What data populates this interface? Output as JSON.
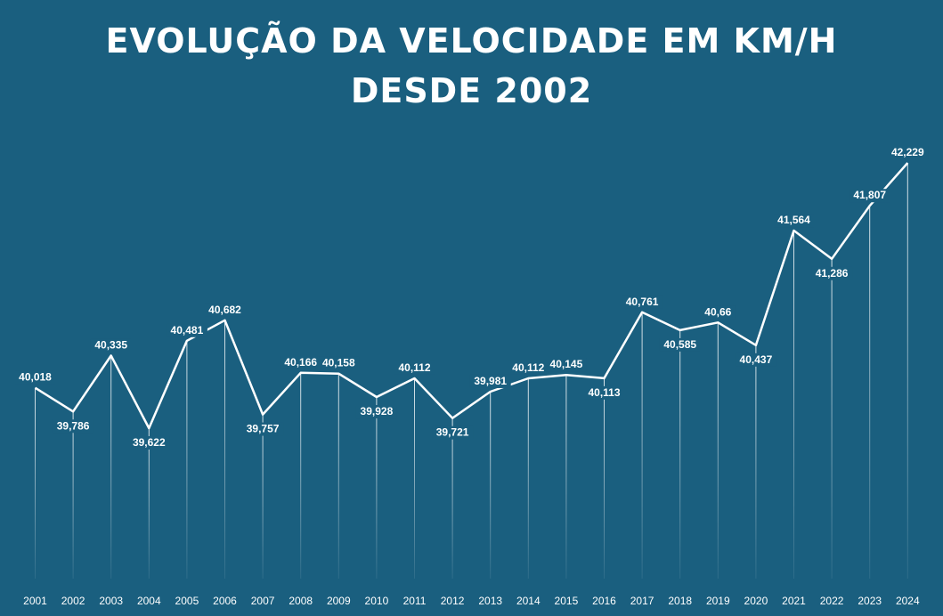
{
  "chart_data": {
    "type": "line",
    "title_line1": "EVOLUÇÃO DA VELOCIDADE EM KM/H",
    "title_line2": "DESDE 2002",
    "x": [
      "2001",
      "2002",
      "2003",
      "2004",
      "2005",
      "2006",
      "2007",
      "2008",
      "2009",
      "2010",
      "2011",
      "2012",
      "2013",
      "2014",
      "2015",
      "2016",
      "2017",
      "2018",
      "2019",
      "2020",
      "2021",
      "2022",
      "2023",
      "2024"
    ],
    "values": [
      40.018,
      39.786,
      40.335,
      39.622,
      40.481,
      40.682,
      39.757,
      40.166,
      40.158,
      39.928,
      40.112,
      39.721,
      39.981,
      40.112,
      40.145,
      40.113,
      40.761,
      40.585,
      40.66,
      40.437,
      41.564,
      41.286,
      41.807,
      42.229
    ],
    "value_labels": [
      "40,018",
      "39,786",
      "40,335",
      "39,622",
      "40,481",
      "40,682",
      "39,757",
      "40,166",
      "40,158",
      "39,928",
      "40,112",
      "39,721",
      "39,981",
      "40,112",
      "40,145",
      "40,113",
      "40,761",
      "40,585",
      "40,66",
      "40,437",
      "41,564",
      "41,286",
      "41,807",
      "42,229"
    ],
    "label_positions": [
      "above",
      "below",
      "above",
      "below",
      "above",
      "above",
      "below",
      "above",
      "above",
      "below",
      "above",
      "below",
      "above",
      "above",
      "above",
      "below",
      "above",
      "below",
      "above",
      "below",
      "above",
      "below",
      "above",
      "above"
    ],
    "grid": false,
    "legend": "none",
    "colors": {
      "background": "#1a5f7f",
      "line": "#ffffff",
      "text": "#ffffff",
      "drop_lines": "#ffffff"
    }
  }
}
